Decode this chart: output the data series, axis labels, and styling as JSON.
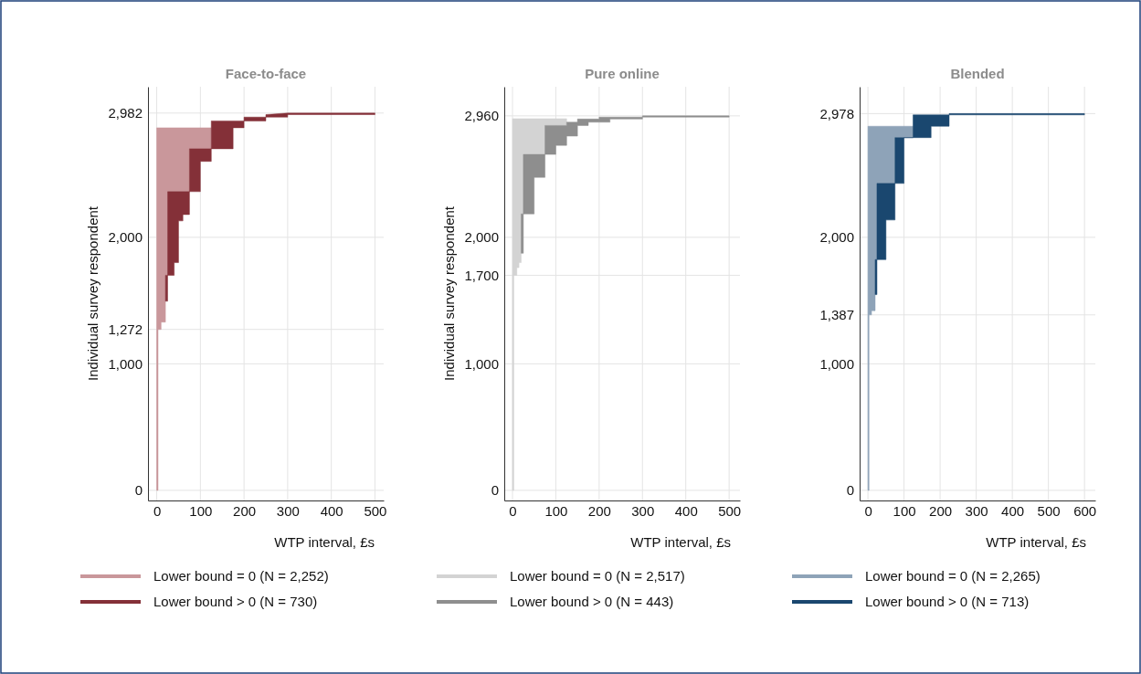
{
  "chart_data": [
    {
      "type": "area",
      "title": "Face-to-face",
      "xlabel": "WTP interval, £s",
      "ylabel": "Individual survey respondent",
      "xlim": [
        -20,
        520
      ],
      "xticks": [
        0,
        100,
        200,
        300,
        400,
        500
      ],
      "ylim": [
        -80,
        3190
      ],
      "yticks": [
        {
          "value": 0,
          "label": "0"
        },
        {
          "value": 1000,
          "label": "1,000"
        },
        {
          "value": 1272,
          "label": "1,272"
        },
        {
          "value": 2000,
          "label": "2,000"
        },
        {
          "value": 2982,
          "label": "2,982"
        }
      ],
      "grid": true,
      "legend": "bottom",
      "series": [
        {
          "name": "Lower bound = 0 (N = 2,252)",
          "color": "#c9979b",
          "x": [
            0,
            3,
            3,
            10,
            10,
            20,
            20,
            25,
            25,
            75,
            75,
            125,
            125,
            0
          ],
          "values": [
            0,
            0,
            1272,
            1272,
            1330,
            1330,
            1700,
            1700,
            2361,
            2361,
            2700,
            2700,
            2866,
            2866
          ]
        },
        {
          "name": "Lower bound > 0 (N = 730)",
          "color": "#843038",
          "x": [
            20,
            25,
            25,
            40,
            40,
            50,
            50,
            60,
            60,
            75,
            75,
            100,
            100,
            125,
            125,
            175,
            175,
            200,
            200,
            250,
            250,
            300,
            300,
            500,
            500,
            300,
            250,
            250,
            200,
            200,
            125,
            125,
            75,
            75,
            25,
            25,
            20
          ],
          "values": [
            1495,
            1495,
            1700,
            1700,
            1800,
            1800,
            2130,
            2130,
            2180,
            2180,
            2361,
            2361,
            2600,
            2600,
            2700,
            2700,
            2866,
            2866,
            2920,
            2920,
            2950,
            2950,
            2970,
            2970,
            2982,
            2982,
            2970,
            2950,
            2950,
            2920,
            2920,
            2700,
            2700,
            2361,
            2361,
            1700,
            1700
          ]
        }
      ]
    },
    {
      "type": "area",
      "title": "Pure online",
      "xlabel": "WTP interval, £s",
      "ylabel": "Individual survey respondent",
      "xlim": [
        -19,
        525
      ],
      "xticks": [
        0,
        100,
        200,
        300,
        400,
        500
      ],
      "ylim": [
        -80,
        3190
      ],
      "yticks": [
        {
          "value": 0,
          "label": "0"
        },
        {
          "value": 1000,
          "label": "1,000"
        },
        {
          "value": 1700,
          "label": "1,700"
        },
        {
          "value": 2000,
          "label": "2,000"
        },
        {
          "value": 2960,
          "label": "2,960"
        }
      ],
      "grid": true,
      "legend": "bottom",
      "series": [
        {
          "name": "Lower bound = 0 (N = 2,517)",
          "color": "#d3d3d3",
          "x": [
            0,
            3,
            3,
            10,
            10,
            15,
            15,
            20,
            20,
            25,
            25,
            75,
            75,
            125,
            125,
            0
          ],
          "values": [
            0,
            0,
            1700,
            1700,
            1760,
            1760,
            1800,
            1800,
            2185,
            2185,
            2655,
            2655,
            2884,
            2884,
            2938,
            2938
          ]
        },
        {
          "name": "Lower bound > 0 (N = 443)",
          "color": "#8e8e8e",
          "x": [
            20,
            25,
            25,
            50,
            50,
            75,
            75,
            100,
            100,
            125,
            125,
            150,
            150,
            175,
            175,
            225,
            225,
            300,
            300,
            500,
            500,
            300,
            300,
            200,
            200,
            150,
            150,
            125,
            125,
            75,
            75,
            25,
            25,
            20
          ],
          "values": [
            1874,
            1874,
            2185,
            2185,
            2474,
            2474,
            2655,
            2655,
            2727,
            2727,
            2800,
            2800,
            2884,
            2884,
            2910,
            2910,
            2935,
            2935,
            2950,
            2950,
            2960,
            2960,
            2950,
            2950,
            2935,
            2935,
            2910,
            2910,
            2884,
            2884,
            2655,
            2655,
            2185,
            2185
          ]
        }
      ]
    },
    {
      "type": "area",
      "title": "Blended",
      "xlabel": "WTP interval, £s",
      "xlim": [
        -23,
        630
      ],
      "xticks": [
        0,
        100,
        200,
        300,
        400,
        500,
        600
      ],
      "ylim": [
        -80,
        3190
      ],
      "yticks": [
        {
          "value": 0,
          "label": "0"
        },
        {
          "value": 1000,
          "label": "1,000"
        },
        {
          "value": 1387,
          "label": "1,387"
        },
        {
          "value": 2000,
          "label": "2,000"
        },
        {
          "value": 2978,
          "label": "2,978"
        }
      ],
      "grid": true,
      "legend": "bottom",
      "series": [
        {
          "name": "Lower bound = 0 (N = 2,265)",
          "color": "#8ea3b8",
          "x": [
            0,
            3,
            3,
            10,
            10,
            20,
            20,
            25,
            25,
            75,
            75,
            125,
            125,
            0
          ],
          "values": [
            0,
            0,
            1387,
            1387,
            1420,
            1420,
            1824,
            1824,
            2426,
            2426,
            2788,
            2788,
            2878,
            2878
          ]
        },
        {
          "name": "Lower bound > 0 (N = 713)",
          "color": "#1a476f",
          "x": [
            20,
            25,
            25,
            50,
            50,
            75,
            75,
            100,
            100,
            175,
            175,
            225,
            225,
            600,
            600,
            225,
            225,
            125,
            125,
            75,
            75,
            25,
            25,
            20
          ],
          "values": [
            1547,
            1547,
            1824,
            1824,
            2137,
            2137,
            2426,
            2426,
            2788,
            2788,
            2878,
            2878,
            2968,
            2968,
            2978,
            2978,
            2968,
            2968,
            2788,
            2788,
            2426,
            2426,
            1824,
            1824
          ]
        }
      ]
    }
  ]
}
